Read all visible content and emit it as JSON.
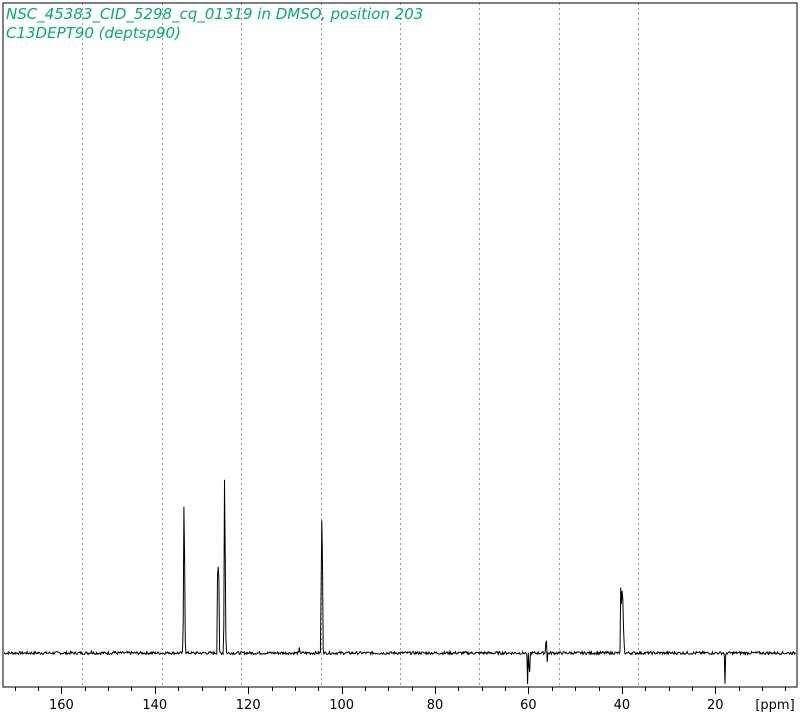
{
  "header": {
    "title": "NSC_45383_CID_5298_cq_01319 in DMSO, position 203",
    "subtitle": "C13DEPT90 (deptsp90)"
  },
  "colors": {
    "title": "#00b062",
    "grid": "#9a9a9a",
    "trace": "#000000",
    "frame": "#000000"
  },
  "chart_data": {
    "type": "line",
    "title": "NSC_45383_CID_5298_cq_01319 in DMSO, position 203",
    "subtitle": "C13DEPT90 (deptsp90)",
    "xlabel": "[ppm]",
    "ylabel": "",
    "x_reversed": true,
    "xlim": [
      172.5,
      2.5
    ],
    "ylim": [
      -0.2,
      3.0
    ],
    "grid": "vertical dotted",
    "legend": "none",
    "x_ticks": [
      {
        "value": 160,
        "label": "160"
      },
      {
        "value": 140,
        "label": "140"
      },
      {
        "value": 120,
        "label": "120"
      },
      {
        "value": 100,
        "label": "100"
      },
      {
        "value": 80,
        "label": "80"
      },
      {
        "value": 60,
        "label": "60"
      },
      {
        "value": 40,
        "label": "40"
      },
      {
        "value": 20,
        "label": "20"
      }
    ],
    "grid_ppm": [
      155.5,
      138.5,
      121.5,
      104.5,
      87.5,
      70.5,
      53.5,
      36.5
    ],
    "peaks": [
      {
        "ppm": 153.6,
        "intensity": 0.03
      },
      {
        "ppm": 148.8,
        "intensity": 0.02
      },
      {
        "ppm": 137.0,
        "intensity": 0.01
      },
      {
        "ppm": 133.8,
        "intensity": 1.25
      },
      {
        "ppm": 133.6,
        "intensity": 0.75
      },
      {
        "ppm": 126.5,
        "intensity": 1.17
      },
      {
        "ppm": 126.3,
        "intensity": 0.6
      },
      {
        "ppm": 125.1,
        "intensity": 1.42
      },
      {
        "ppm": 124.9,
        "intensity": 0.8
      },
      {
        "ppm": 109.0,
        "intensity": 0.04
      },
      {
        "ppm": 104.3,
        "intensity": 1.43
      },
      {
        "ppm": 104.1,
        "intensity": 0.7
      },
      {
        "ppm": 60.2,
        "intensity": -0.25
      },
      {
        "ppm": 59.8,
        "intensity": -0.25
      },
      {
        "ppm": 56.2,
        "intensity": 0.19
      },
      {
        "ppm": 56.0,
        "intensity": -0.07
      },
      {
        "ppm": 40.2,
        "intensity": 0.65
      },
      {
        "ppm": 40.0,
        "intensity": 0.62
      },
      {
        "ppm": 39.8,
        "intensity": 0.42
      },
      {
        "ppm": 39.6,
        "intensity": 0.22
      },
      {
        "ppm": 17.9,
        "intensity": -0.25
      }
    ]
  }
}
